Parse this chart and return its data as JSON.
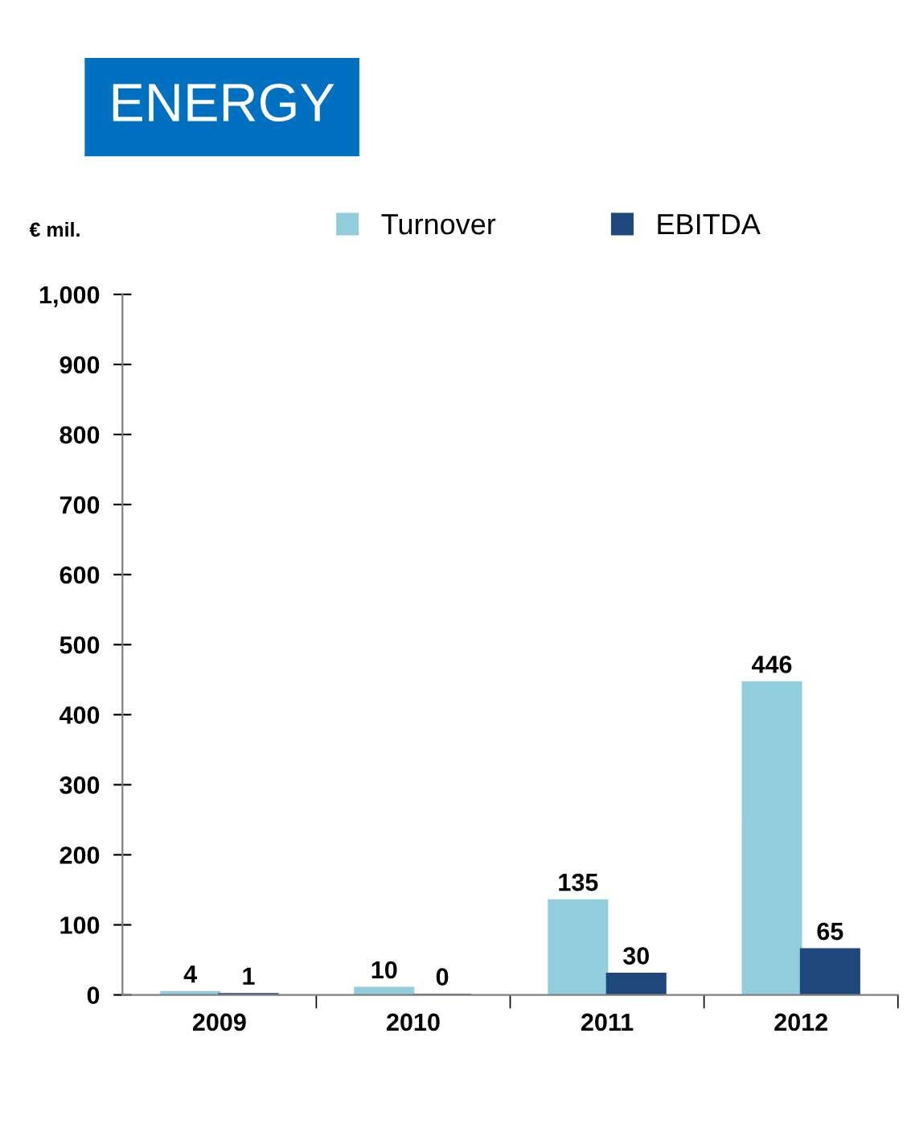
{
  "chart_data": {
    "type": "bar",
    "title": "ENERGY",
    "ylabel": "€ mil.",
    "categories": [
      "2009",
      "2010",
      "2011",
      "2012"
    ],
    "series": [
      {
        "name": "Turnover",
        "color": "#92cddc",
        "values": [
          4,
          10,
          135,
          446
        ]
      },
      {
        "name": "EBITDA",
        "color": "#1f497d",
        "values": [
          1,
          0,
          30,
          65
        ]
      }
    ],
    "ylim": [
      0,
      1000
    ],
    "yticks": [
      0,
      100,
      200,
      300,
      400,
      500,
      600,
      700,
      800,
      900,
      {
        "value": 1000,
        "label": "1,000"
      }
    ],
    "data_labels": true,
    "grid": false,
    "legend": "top"
  }
}
